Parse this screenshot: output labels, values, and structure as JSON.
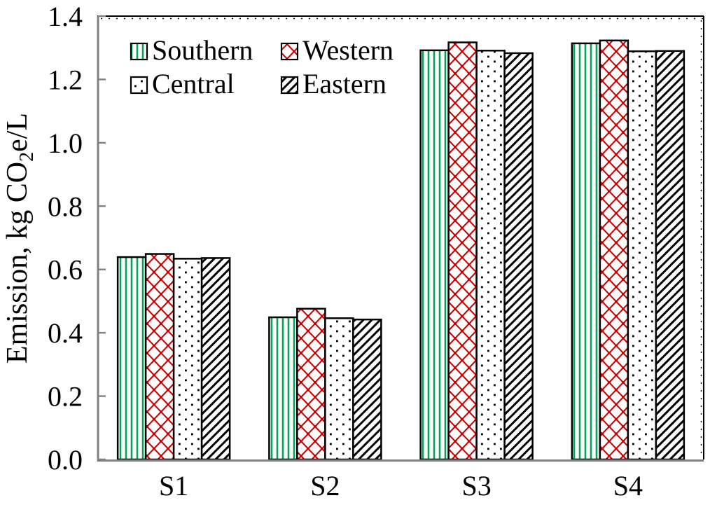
{
  "figure": {
    "background": "#ffffff",
    "description": "Grouped bar chart of emissions by region and scenario"
  },
  "chart_data": {
    "type": "bar",
    "title": "",
    "xlabel": "",
    "ylabel": "Emission, kg CO2e/L",
    "ylabel_parts": {
      "pre": "Emission, kg CO",
      "sub": "2",
      "post": "e/L"
    },
    "categories": [
      "S1",
      "S2",
      "S3",
      "S4"
    ],
    "series": [
      {
        "name": "Southern",
        "pattern": "green-vertical-stripes",
        "color": "#00A651",
        "values": [
          0.639,
          0.449,
          1.292,
          1.314
        ]
      },
      {
        "name": "Western",
        "pattern": "red-diamond-lattice",
        "color": "#CC0000",
        "values": [
          0.649,
          0.476,
          1.317,
          1.323
        ]
      },
      {
        "name": "Central",
        "pattern": "black-dot-grid",
        "color": "#000000",
        "values": [
          0.634,
          0.446,
          1.291,
          1.289
        ]
      },
      {
        "name": "Eastern",
        "pattern": "black-diagonal-hatch",
        "color": "#000000",
        "values": [
          0.636,
          0.442,
          1.283,
          1.29
        ]
      }
    ],
    "ylim": [
      0,
      1.4
    ],
    "ytick_step": 0.2,
    "ytick_labels": [
      "0.0",
      "0.2",
      "0.4",
      "0.6",
      "0.8",
      "1.0",
      "1.2",
      "1.4"
    ],
    "grid": false,
    "legend": {
      "position": "top-left-inside",
      "columns": 2,
      "order": [
        "Southern",
        "Western",
        "Central",
        "Eastern"
      ]
    },
    "axis_color": "#808080",
    "bar_outline_color": "#000000",
    "bar_fill_background": "#ffffff"
  }
}
